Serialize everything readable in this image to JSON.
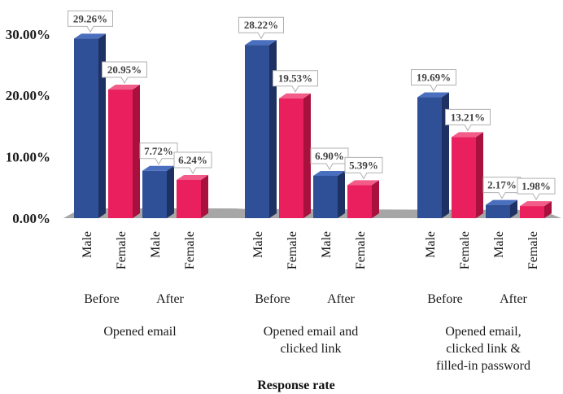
{
  "chart_data": {
    "type": "bar",
    "xlabel": "Response rate",
    "ylabel": "",
    "ylim": [
      0,
      0.32
    ],
    "y_ticks": [
      "0.00%",
      "10.00%",
      "20.00%",
      "30.00%"
    ],
    "y_tick_values": [
      0,
      0.1,
      0.2,
      0.3
    ],
    "groups": [
      {
        "label": "Opened email",
        "subgroups": [
          {
            "label": "Before",
            "bars": [
              {
                "category": "Male",
                "value": 0.2926,
                "label": "29.26%"
              },
              {
                "category": "Female",
                "value": 0.2095,
                "label": "20.95%"
              }
            ]
          },
          {
            "label": "After",
            "bars": [
              {
                "category": "Male",
                "value": 0.0772,
                "label": "7.72%"
              },
              {
                "category": "Female",
                "value": 0.0624,
                "label": "6.24%"
              }
            ]
          }
        ]
      },
      {
        "label": "Opened email and\nclicked link",
        "subgroups": [
          {
            "label": "Before",
            "bars": [
              {
                "category": "Male",
                "value": 0.2822,
                "label": "28.22%"
              },
              {
                "category": "Female",
                "value": 0.1953,
                "label": "19.53%"
              }
            ]
          },
          {
            "label": "After",
            "bars": [
              {
                "category": "Male",
                "value": 0.069,
                "label": "6.90%"
              },
              {
                "category": "Female",
                "value": 0.0539,
                "label": "5.39%"
              }
            ]
          }
        ]
      },
      {
        "label": "Opened email,\nclicked link &\nfilled-in password",
        "subgroups": [
          {
            "label": "Before",
            "bars": [
              {
                "category": "Male",
                "value": 0.1969,
                "label": "19.69%"
              },
              {
                "category": "Female",
                "value": 0.1321,
                "label": "13.21%"
              }
            ]
          },
          {
            "label": "After",
            "bars": [
              {
                "category": "Male",
                "value": 0.0217,
                "label": "2.17%"
              },
              {
                "category": "Female",
                "value": 0.0198,
                "label": "1.98%"
              }
            ]
          }
        ]
      }
    ],
    "colors": {
      "Male": {
        "front": "#2f4f96",
        "side": "#1d3263",
        "top": "#4a6fbf"
      },
      "Female": {
        "front": "#ea1f5d",
        "side": "#a8103e",
        "top": "#f25c88"
      },
      "floor": "#a6a6a6"
    },
    "legend": "none",
    "grid": false
  }
}
